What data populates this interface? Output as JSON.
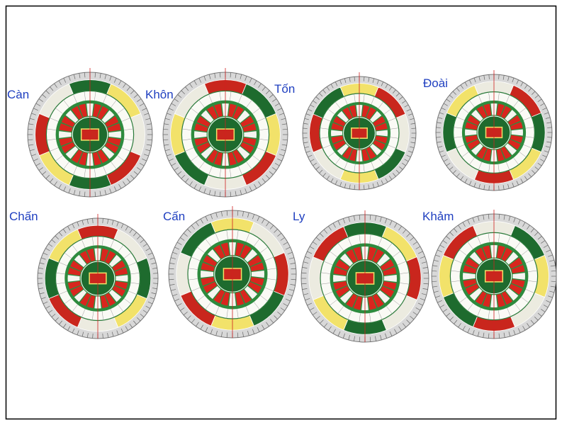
{
  "slide": {
    "compasses": [
      {
        "label": "Càn"
      },
      {
        "label": "Khôn"
      },
      {
        "label": "Tốn"
      },
      {
        "label": "Đoài"
      },
      {
        "label": "Chấn"
      },
      {
        "label": "Cấn"
      },
      {
        "label": "Ly"
      },
      {
        "label": "Khảm"
      }
    ]
  }
}
